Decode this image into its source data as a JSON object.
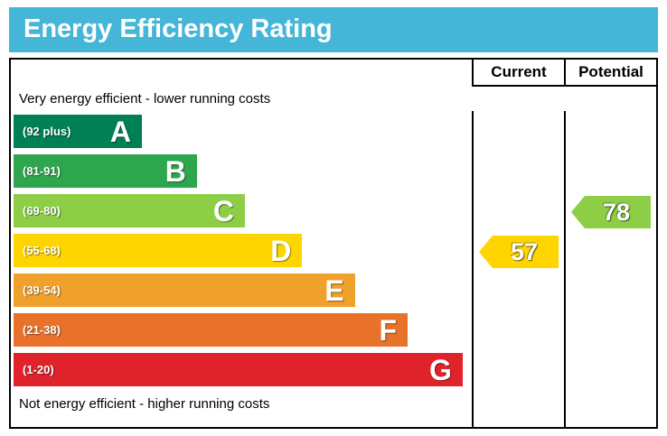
{
  "title": "Energy Efficiency Rating",
  "columns": {
    "current": "Current",
    "potential": "Potential"
  },
  "captions": {
    "top": "Very energy efficient - lower running costs",
    "bottom": "Not energy efficient - higher running costs"
  },
  "colors": {
    "title_bg": "#45b6d8",
    "border": "#000000"
  },
  "chart_data": {
    "type": "bar",
    "title": "Energy Efficiency Rating",
    "orientation": "horizontal",
    "bands": [
      {
        "letter": "A",
        "range": "(92 plus)",
        "color": "#008054",
        "width_pct": 28
      },
      {
        "letter": "B",
        "range": "(81-91)",
        "color": "#2ea64d",
        "width_pct": 40
      },
      {
        "letter": "C",
        "range": "(69-80)",
        "color": "#8dce46",
        "width_pct": 50.5
      },
      {
        "letter": "D",
        "range": "(55-68)",
        "color": "#ffd500",
        "width_pct": 63
      },
      {
        "letter": "E",
        "range": "(39-54)",
        "color": "#f0a12c",
        "width_pct": 74.5
      },
      {
        "letter": "F",
        "range": "(21-38)",
        "color": "#e8722a",
        "width_pct": 86
      },
      {
        "letter": "G",
        "range": "(1-20)",
        "color": "#e0232a",
        "width_pct": 98
      }
    ],
    "current": {
      "value": 57,
      "band": "D",
      "color": "#ffd500"
    },
    "potential": {
      "value": 78,
      "band": "C",
      "color": "#8dce46"
    }
  }
}
